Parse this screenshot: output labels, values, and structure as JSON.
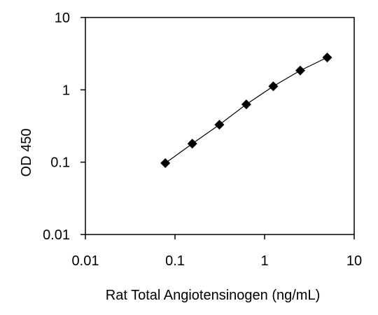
{
  "chart_data": {
    "type": "scatter",
    "title": "",
    "xlabel": "Rat Total Angiotensinogen (ng/mL)",
    "ylabel": "OD 450",
    "x_scale": "log",
    "y_scale": "log",
    "xlim": [
      0.01,
      10
    ],
    "ylim": [
      0.01,
      10
    ],
    "x_ticks": [
      0.01,
      0.1,
      1,
      10
    ],
    "x_tick_labels": [
      "0.01",
      "0.1",
      "1",
      "10"
    ],
    "y_ticks": [
      0.01,
      0.1,
      1,
      10
    ],
    "y_tick_labels": [
      "0.01",
      "0.1",
      "1",
      "10"
    ],
    "grid": false,
    "legend": "none",
    "marker": "diamond",
    "marker_color": "#000000",
    "line_color": "#000000",
    "series": [
      {
        "x": [
          0.078,
          0.156,
          0.313,
          0.625,
          1.25,
          2.5,
          5
        ],
        "y": [
          0.097,
          0.18,
          0.33,
          0.63,
          1.12,
          1.85,
          2.8
        ]
      }
    ]
  }
}
